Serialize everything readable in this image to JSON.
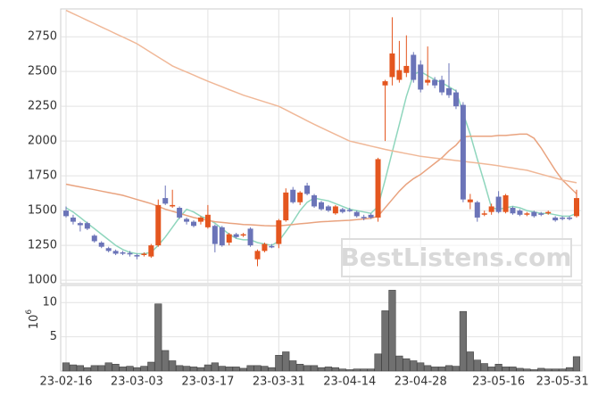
{
  "chart_data": {
    "type": "candlestick",
    "watermark": "BestListens.com",
    "categories": [
      "23-02-16",
      null,
      null,
      null,
      null,
      null,
      null,
      null,
      null,
      null,
      "23-03-03",
      null,
      null,
      null,
      null,
      null,
      null,
      null,
      null,
      null,
      "23-03-17",
      null,
      null,
      null,
      null,
      null,
      null,
      null,
      null,
      null,
      "23-03-31",
      null,
      null,
      null,
      null,
      null,
      null,
      null,
      null,
      null,
      "23-04-14",
      null,
      null,
      null,
      null,
      null,
      null,
      null,
      null,
      null,
      "23-04-28",
      null,
      null,
      null,
      null,
      null,
      null,
      null,
      null,
      null,
      null,
      "23-05-16",
      null,
      null,
      null,
      null,
      null,
      null,
      null,
      null,
      "23-05-31",
      null,
      null
    ],
    "open": [
      1500,
      1450,
      1410,
      1410,
      1320,
      1270,
      1230,
      1210,
      1200,
      1195,
      1180,
      1185,
      1170,
      1250,
      1590,
      1530,
      1520,
      1440,
      1420,
      1420,
      1380,
      1390,
      1380,
      1270,
      1330,
      1325,
      1370,
      1150,
      1210,
      1245,
      1260,
      1430,
      1650,
      1560,
      1680,
      1610,
      1560,
      1530,
      1480,
      1510,
      1505,
      1490,
      1455,
      1470,
      1450,
      2400,
      2460,
      2440,
      2490,
      2620,
      2550,
      2420,
      2440,
      2440,
      2380,
      2350,
      2260,
      1560,
      1560,
      1475,
      1490,
      1600,
      1490,
      1520,
      1500,
      1475,
      1490,
      1480,
      1480,
      1450,
      1450,
      1450,
      1460
    ],
    "high": [
      1530,
      1470,
      1420,
      1420,
      1330,
      1280,
      1240,
      1220,
      1210,
      1210,
      1190,
      1200,
      1260,
      1580,
      1680,
      1650,
      1530,
      1450,
      1430,
      1460,
      1540,
      1400,
      1390,
      1340,
      1340,
      1340,
      1380,
      1220,
      1270,
      1260,
      1440,
      1660,
      1670,
      1640,
      1700,
      1620,
      1570,
      1540,
      1540,
      1520,
      1520,
      1500,
      1470,
      1480,
      1880,
      2440,
      2890,
      2720,
      2760,
      2640,
      2580,
      2680,
      2460,
      2470,
      2560,
      2370,
      2280,
      1620,
      1570,
      1500,
      1550,
      1640,
      1620,
      1530,
      1510,
      1490,
      1500,
      1490,
      1500,
      1460,
      1460,
      1460,
      1650
    ],
    "low": [
      1450,
      1400,
      1350,
      1360,
      1270,
      1230,
      1200,
      1180,
      1180,
      1170,
      1150,
      1170,
      1160,
      1240,
      1540,
      1520,
      1440,
      1400,
      1380,
      1400,
      1370,
      1200,
      1240,
      1250,
      1300,
      1310,
      1240,
      1100,
      1200,
      1230,
      1230,
      1420,
      1550,
      1540,
      1610,
      1520,
      1500,
      1490,
      1470,
      1480,
      1490,
      1450,
      1430,
      1440,
      1420,
      2000,
      2400,
      2420,
      2460,
      2420,
      2350,
      2400,
      2380,
      2330,
      2310,
      2230,
      1560,
      1510,
      1420,
      1460,
      1470,
      1480,
      1480,
      1470,
      1460,
      1460,
      1450,
      1460,
      1470,
      1420,
      1430,
      1430,
      1450
    ],
    "close": [
      1460,
      1420,
      1395,
      1370,
      1280,
      1240,
      1210,
      1190,
      1190,
      1185,
      1170,
      1190,
      1250,
      1540,
      1550,
      1540,
      1450,
      1420,
      1390,
      1450,
      1470,
      1260,
      1250,
      1330,
      1310,
      1330,
      1250,
      1210,
      1260,
      1240,
      1430,
      1630,
      1560,
      1630,
      1620,
      1530,
      1510,
      1500,
      1530,
      1490,
      1500,
      1460,
      1450,
      1450,
      1870,
      2430,
      2630,
      2510,
      2540,
      2440,
      2370,
      2440,
      2400,
      2350,
      2330,
      2250,
      1580,
      1580,
      1450,
      1480,
      1530,
      1490,
      1610,
      1480,
      1470,
      1480,
      1460,
      1470,
      1490,
      1430,
      1440,
      1440,
      1590
    ],
    "up_color": "#e4561f",
    "down_color": "#6b74b8",
    "series": [
      {
        "color": "#8fd6bd",
        "values": [
          1520,
          1490,
          1450,
          1410,
          1370,
          1330,
          1290,
          1250,
          1220,
          1200,
          1190,
          1190,
          1200,
          1250,
          1310,
          1380,
          1450,
          1510,
          1490,
          1460,
          1440,
          1410,
          1370,
          1330,
          1300,
          1290,
          1290,
          1270,
          1260,
          1250,
          1280,
          1350,
          1420,
          1500,
          1560,
          1590,
          1580,
          1570,
          1550,
          1530,
          1510,
          1500,
          1490,
          1480,
          1530,
          1720,
          1920,
          2120,
          2320,
          2480,
          2500,
          2470,
          2440,
          2420,
          2390,
          2360,
          2200,
          2050,
          1870,
          1700,
          1520,
          1510,
          1520,
          1530,
          1520,
          1500,
          1490,
          1480,
          1480,
          1470,
          1460,
          1460,
          1480
        ]
      },
      {
        "color": "#e9a37f",
        "values": [
          1690,
          1680,
          1670,
          1660,
          1650,
          1640,
          1630,
          1620,
          1610,
          1595,
          1580,
          1565,
          1550,
          1530,
          1510,
          1495,
          1480,
          1465,
          1450,
          1440,
          1430,
          1420,
          1415,
          1410,
          1405,
          1400,
          1398,
          1395,
          1392,
          1390,
          1390,
          1395,
          1400,
          1405,
          1410,
          1415,
          1420,
          1422,
          1425,
          1428,
          1430,
          1435,
          1440,
          1445,
          1460,
          1520,
          1580,
          1640,
          1690,
          1730,
          1760,
          1800,
          1840,
          1880,
          1930,
          1970,
          2030,
          2035,
          2035,
          2035,
          2035,
          2040,
          2040,
          2045,
          2050,
          2050,
          2020,
          1950,
          1870,
          1790,
          1720,
          1670,
          1620
        ]
      },
      {
        "color": "#f0b898",
        "values": [
          2940,
          2916,
          2892,
          2868,
          2844,
          2820,
          2796,
          2772,
          2748,
          2724,
          2700,
          2668,
          2636,
          2604,
          2572,
          2540,
          2518,
          2496,
          2474,
          2452,
          2430,
          2410,
          2390,
          2370,
          2350,
          2330,
          2314,
          2298,
          2282,
          2266,
          2250,
          2224,
          2198,
          2172,
          2146,
          2120,
          2096,
          2072,
          2048,
          2024,
          2000,
          1988,
          1976,
          1964,
          1952,
          1940,
          1930,
          1920,
          1910,
          1900,
          1890,
          1884,
          1878,
          1872,
          1866,
          1860,
          1854,
          1848,
          1842,
          1836,
          1830,
          1822,
          1814,
          1806,
          1798,
          1790,
          1776,
          1762,
          1748,
          1734,
          1720,
          1710,
          1700
        ]
      }
    ],
    "ylim": [
      975,
      2950
    ],
    "yticks": [
      1000,
      1250,
      1500,
      1750,
      2000,
      2250,
      2500,
      2750
    ],
    "grid": true,
    "volume": {
      "type": "bar",
      "color": "#707070",
      "values": [
        1.2,
        0.9,
        0.8,
        0.5,
        0.8,
        0.8,
        1.2,
        1.0,
        0.6,
        0.7,
        0.5,
        0.7,
        1.3,
        9.8,
        3.0,
        1.5,
        0.8,
        0.7,
        0.6,
        0.5,
        0.9,
        1.2,
        0.7,
        0.6,
        0.6,
        0.4,
        0.8,
        0.8,
        0.7,
        0.5,
        2.3,
        2.8,
        1.5,
        1.0,
        0.8,
        0.8,
        0.5,
        0.6,
        0.5,
        0.3,
        0.2,
        0.3,
        0.3,
        0.3,
        2.5,
        8.8,
        11.8,
        2.2,
        1.8,
        1.5,
        1.2,
        0.8,
        0.6,
        0.6,
        0.8,
        0.7,
        8.7,
        2.8,
        1.6,
        1.1,
        0.6,
        1.0,
        0.6,
        0.6,
        0.4,
        0.3,
        0.2,
        0.4,
        0.3,
        0.3,
        0.3,
        0.5,
        2.1
      ],
      "ylim": [
        0,
        12.5
      ],
      "yticks": [
        5,
        10
      ],
      "axis_label": {
        "base": "10",
        "exponent": "6"
      }
    }
  }
}
